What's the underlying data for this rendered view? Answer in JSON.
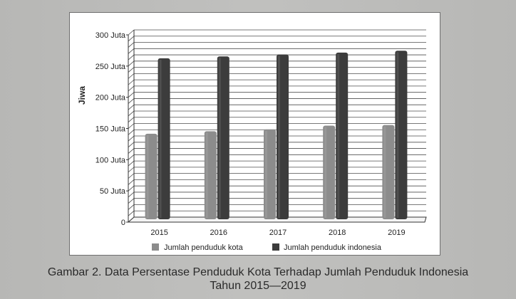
{
  "caption": {
    "line1": "Gambar 2. Data Persentase Penduduk Kota Terhadap Jumlah Penduduk Indonesia",
    "line2": "Tahun 2015—2019"
  },
  "chart_data": {
    "type": "bar",
    "title": "",
    "xlabel": "",
    "ylabel": "Jiwa",
    "ylim": [
      0,
      300
    ],
    "y_ticks": [
      0,
      50,
      100,
      150,
      200,
      250,
      300
    ],
    "y_tick_labels": [
      "0",
      "50 Juta",
      "100 Juta",
      "150 Juta",
      "200 Juta",
      "250 Juta",
      "300 Juta"
    ],
    "categories": [
      "2015",
      "2016",
      "2017",
      "2018",
      "2019"
    ],
    "series": [
      {
        "name": "Jumlah penduduk kota",
        "color": "#8c8c8c",
        "values": [
          137,
          141,
          144,
          150,
          151
        ]
      },
      {
        "name": "Jumlah penduduk indonesia",
        "color": "#3c3c3c",
        "values": [
          258,
          261,
          264,
          267,
          270
        ]
      }
    ],
    "grid": true,
    "legend": "bottom"
  }
}
